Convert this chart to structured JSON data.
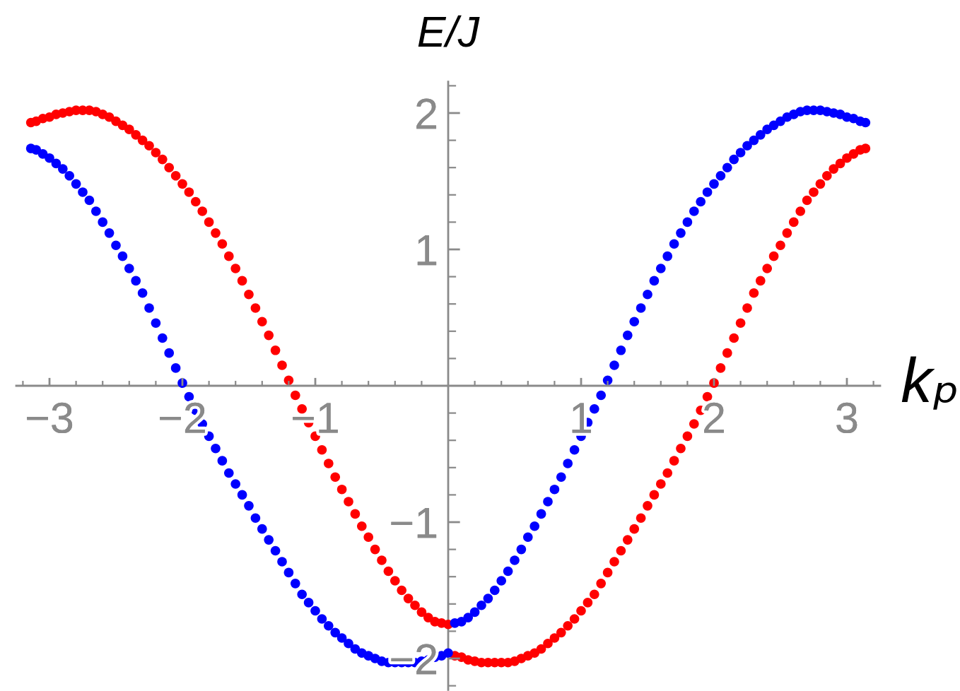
{
  "chart_data": {
    "type": "scatter",
    "xlabel": "kₚ",
    "ylabel": "E/J",
    "marker": "circle",
    "x": [
      -3.14,
      -3.1,
      -3.05,
      -3,
      -2.95,
      -2.9,
      -2.85,
      -2.8,
      -2.75,
      -2.7,
      -2.65,
      -2.6,
      -2.55,
      -2.5,
      -2.45,
      -2.4,
      -2.35,
      -2.3,
      -2.25,
      -2.2,
      -2.15,
      -2.1,
      -2.05,
      -2,
      -1.95,
      -1.9,
      -1.85,
      -1.8,
      -1.75,
      -1.7,
      -1.65,
      -1.6,
      -1.55,
      -1.5,
      -1.45,
      -1.4,
      -1.35,
      -1.3,
      -1.25,
      -1.2,
      -1.15,
      -1.1,
      -1.05,
      -1,
      -0.95,
      -0.9,
      -0.85,
      -0.8,
      -0.75,
      -0.7,
      -0.65,
      -0.6,
      -0.55,
      -0.5,
      -0.45,
      -0.4,
      -0.35,
      -0.3,
      -0.25,
      -0.2,
      -0.15,
      -0.1,
      -0.05,
      0,
      0.05,
      0.1,
      0.15,
      0.2,
      0.25,
      0.3,
      0.35,
      0.4,
      0.45,
      0.5,
      0.55,
      0.6,
      0.65,
      0.7,
      0.75,
      0.8,
      0.85,
      0.9,
      0.95,
      1,
      1.05,
      1.1,
      1.15,
      1.2,
      1.25,
      1.3,
      1.35,
      1.4,
      1.45,
      1.5,
      1.55,
      1.6,
      1.65,
      1.7,
      1.75,
      1.8,
      1.85,
      1.9,
      1.95,
      2,
      2.05,
      2.1,
      2.15,
      2.2,
      2.25,
      2.3,
      2.35,
      2.4,
      2.45,
      2.5,
      2.55,
      2.6,
      2.65,
      2.7,
      2.75,
      2.8,
      2.85,
      2.9,
      2.95,
      3,
      3.05,
      3.1,
      3.14
    ],
    "series": [
      {
        "color": "#ff0000",
        "values": [
          1.93,
          1.94,
          1.96,
          1.97,
          1.99,
          2.0,
          2.01,
          2.02,
          2.02,
          2.02,
          2.01,
          1.99,
          1.97,
          1.94,
          1.91,
          1.88,
          1.84,
          1.8,
          1.76,
          1.71,
          1.66,
          1.6,
          1.54,
          1.48,
          1.42,
          1.35,
          1.28,
          1.2,
          1.12,
          1.04,
          0.95,
          0.86,
          0.77,
          0.67,
          0.57,
          0.47,
          0.37,
          0.26,
          0.15,
          0.04,
          -0.07,
          -0.17,
          -0.27,
          -0.37,
          -0.47,
          -0.57,
          -0.67,
          -0.76,
          -0.85,
          -0.94,
          -1.03,
          -1.11,
          -1.2,
          -1.28,
          -1.36,
          -1.43,
          -1.5,
          -1.56,
          -1.61,
          -1.66,
          -1.7,
          -1.73,
          -1.74,
          -1.75,
          -1.98,
          -1.99,
          -2.01,
          -2.02,
          -2.03,
          -2.03,
          -2.03,
          -2.03,
          -2.03,
          -2.02,
          -2.0,
          -1.98,
          -1.96,
          -1.93,
          -1.89,
          -1.85,
          -1.81,
          -1.76,
          -1.71,
          -1.65,
          -1.59,
          -1.53,
          -1.45,
          -1.37,
          -1.29,
          -1.21,
          -1.13,
          -1.05,
          -0.97,
          -0.88,
          -0.8,
          -0.72,
          -0.64,
          -0.55,
          -0.46,
          -0.37,
          -0.28,
          -0.18,
          -0.08,
          0.02,
          0.13,
          0.24,
          0.35,
          0.46,
          0.57,
          0.68,
          0.77,
          0.86,
          0.95,
          1.03,
          1.12,
          1.2,
          1.28,
          1.36,
          1.42,
          1.48,
          1.54,
          1.59,
          1.63,
          1.67,
          1.7,
          1.73,
          1.74
        ]
      },
      {
        "color": "#0000ff",
        "values": [
          1.74,
          1.73,
          1.7,
          1.67,
          1.63,
          1.59,
          1.54,
          1.48,
          1.42,
          1.36,
          1.28,
          1.2,
          1.12,
          1.03,
          0.95,
          0.86,
          0.77,
          0.68,
          0.57,
          0.46,
          0.35,
          0.24,
          0.13,
          0.02,
          -0.08,
          -0.18,
          -0.28,
          -0.37,
          -0.46,
          -0.55,
          -0.64,
          -0.72,
          -0.8,
          -0.88,
          -0.97,
          -1.05,
          -1.13,
          -1.21,
          -1.29,
          -1.37,
          -1.45,
          -1.53,
          -1.59,
          -1.65,
          -1.71,
          -1.76,
          -1.81,
          -1.85,
          -1.89,
          -1.93,
          -1.96,
          -1.98,
          -2.0,
          -2.02,
          -2.03,
          -2.03,
          -2.03,
          -2.03,
          -2.03,
          -2.02,
          -2.01,
          -1.99,
          -1.98,
          -1.96,
          -1.74,
          -1.73,
          -1.7,
          -1.66,
          -1.61,
          -1.56,
          -1.5,
          -1.43,
          -1.36,
          -1.28,
          -1.2,
          -1.11,
          -1.03,
          -0.94,
          -0.85,
          -0.76,
          -0.67,
          -0.57,
          -0.47,
          -0.37,
          -0.27,
          -0.17,
          -0.07,
          0.04,
          0.15,
          0.26,
          0.37,
          0.47,
          0.57,
          0.67,
          0.77,
          0.86,
          0.95,
          1.04,
          1.12,
          1.2,
          1.28,
          1.35,
          1.42,
          1.48,
          1.54,
          1.6,
          1.66,
          1.71,
          1.76,
          1.8,
          1.84,
          1.88,
          1.91,
          1.94,
          1.97,
          1.99,
          2.01,
          2.02,
          2.02,
          2.02,
          2.01,
          2.0,
          1.99,
          1.97,
          1.96,
          1.94,
          1.93
        ]
      }
    ],
    "xlim": [
      -3.25,
      3.25
    ],
    "ylim": [
      -2.23,
      2.23
    ],
    "xticks": [
      {
        "value": -3.2,
        "label": null
      },
      {
        "value": -3,
        "label": "−3"
      },
      {
        "value": -2.8,
        "label": null
      },
      {
        "value": -2.6,
        "label": null
      },
      {
        "value": -2.4,
        "label": null
      },
      {
        "value": -2.2,
        "label": null
      },
      {
        "value": -2,
        "label": "−2"
      },
      {
        "value": -1.8,
        "label": null
      },
      {
        "value": -1.6,
        "label": null
      },
      {
        "value": -1.4,
        "label": null
      },
      {
        "value": -1.2,
        "label": null
      },
      {
        "value": -1,
        "label": "−1"
      },
      {
        "value": -0.8,
        "label": null
      },
      {
        "value": -0.6,
        "label": null
      },
      {
        "value": -0.4,
        "label": null
      },
      {
        "value": -0.2,
        "label": null
      },
      {
        "value": 0.2,
        "label": null
      },
      {
        "value": 0.4,
        "label": null
      },
      {
        "value": 0.6,
        "label": null
      },
      {
        "value": 0.8,
        "label": null
      },
      1,
      {
        "value": 1.2,
        "label": null
      },
      {
        "value": 1.4,
        "label": null
      },
      {
        "value": 1.6,
        "label": null
      },
      {
        "value": 1.8,
        "label": null
      },
      2,
      {
        "value": 2.2,
        "label": null
      },
      {
        "value": 2.4,
        "label": null
      },
      {
        "value": 2.6,
        "label": null
      },
      {
        "value": 2.8,
        "label": null
      },
      3,
      {
        "value": 3.2,
        "label": null
      }
    ],
    "yticks": [
      {
        "value": -2.2,
        "label": null
      },
      {
        "value": -2,
        "label": "−2"
      },
      {
        "value": -1.8,
        "label": null
      },
      {
        "value": -1.6,
        "label": null
      },
      {
        "value": -1.4,
        "label": null
      },
      {
        "value": -1.2,
        "label": null
      },
      {
        "value": -1,
        "label": "−1"
      },
      {
        "value": -0.8,
        "label": null
      },
      {
        "value": -0.6,
        "label": null
      },
      {
        "value": -0.4,
        "label": null
      },
      {
        "value": -0.2,
        "label": null
      },
      {
        "value": 0.2,
        "label": null
      },
      {
        "value": 0.4,
        "label": null
      },
      {
        "value": 0.6,
        "label": null
      },
      {
        "value": 0.8,
        "label": null
      },
      1,
      {
        "value": 1.2,
        "label": null
      },
      {
        "value": 1.4,
        "label": null
      },
      {
        "value": 1.6,
        "label": null
      },
      {
        "value": 1.8,
        "label": null
      },
      2,
      {
        "value": 2.2,
        "label": null
      }
    ]
  }
}
